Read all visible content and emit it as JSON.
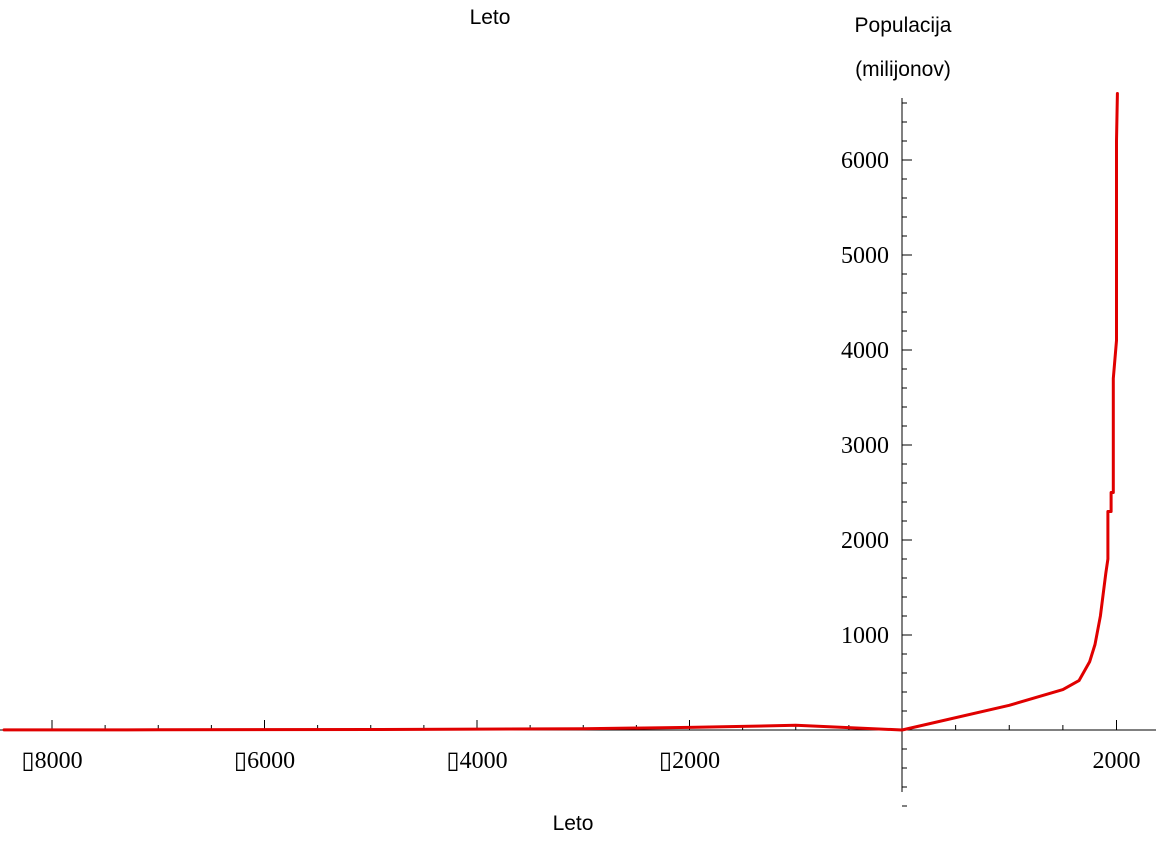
{
  "chart_data": {
    "type": "line",
    "top_label": "Leto",
    "xlabel": "Leto",
    "ylabel_lines": [
      "Populacija",
      "(milijonov)"
    ],
    "line_color": "#e00000",
    "grid": false,
    "x_tick_labels": [
      "▯8000",
      "▯6000",
      "▯4000",
      "▯2000",
      "2000"
    ],
    "y_tick_labels": [
      "1000",
      "2000",
      "3000",
      "4000",
      "5000",
      "6000"
    ],
    "series": [
      {
        "points": [
          [
            -8500,
            1
          ],
          [
            -7000,
            2
          ],
          [
            -5000,
            5
          ],
          [
            -3000,
            14
          ],
          [
            -2000,
            27
          ],
          [
            -1000,
            50
          ],
          [
            1,
            0
          ],
          [
            1000,
            260
          ],
          [
            1500,
            425
          ],
          [
            1650,
            520
          ],
          [
            1750,
            720
          ],
          [
            1800,
            900
          ],
          [
            1850,
            1200
          ],
          [
            1900,
            1650
          ],
          [
            1920,
            1800
          ],
          [
            1920,
            2300
          ],
          [
            1950,
            2300
          ],
          [
            1950,
            2500
          ],
          [
            1970,
            2500
          ],
          [
            1970,
            3700
          ],
          [
            2000,
            4100
          ],
          [
            2000,
            6200
          ],
          [
            2008,
            6700
          ]
        ]
      }
    ]
  }
}
